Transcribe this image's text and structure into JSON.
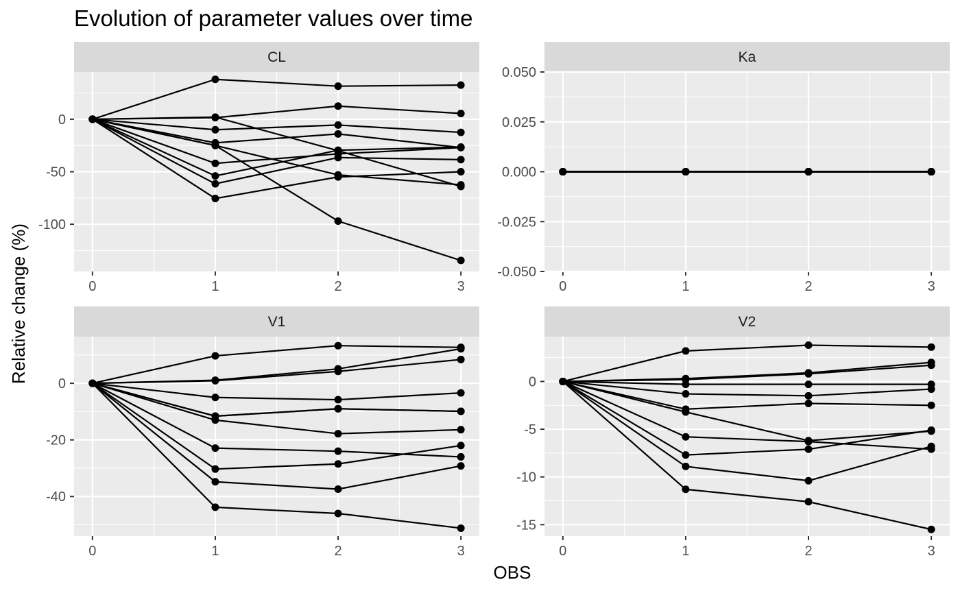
{
  "chart_data": {
    "type": "line",
    "title": "Evolution of parameter values over time",
    "xlabel": "OBS",
    "ylabel": "Relative change (%)",
    "x": [
      0,
      1,
      2,
      3
    ],
    "grid": true,
    "panels": [
      {
        "name": "CL",
        "ylim": [
          -145,
          45
        ],
        "yticks": [
          0,
          -50,
          -100
        ],
        "series": [
          [
            0,
            38,
            31.5,
            32.5
          ],
          [
            0,
            2,
            -30,
            -64
          ],
          [
            0,
            1.5,
            12.5,
            5.5
          ],
          [
            0,
            -10,
            -5.5,
            -12.5
          ],
          [
            0,
            -22.5,
            -14,
            -27
          ],
          [
            0,
            -25,
            -53,
            -62.5
          ],
          [
            0,
            -42,
            -33,
            -27
          ],
          [
            0,
            -54,
            -29.5,
            -26.5
          ],
          [
            0,
            -61.5,
            -36.5,
            -38.5
          ],
          [
            0,
            -75.5,
            -55,
            -50
          ],
          [
            0,
            -25,
            -97,
            -134.5
          ]
        ]
      },
      {
        "name": "Ka",
        "ylim": [
          -0.05,
          0.05
        ],
        "yticks": [
          0.05,
          0.025,
          0,
          -0.025,
          -0.05
        ],
        "yticklabels": [
          "0.050",
          "0.025",
          "0.000",
          "-0.025",
          "-0.050"
        ],
        "series": [
          [
            0,
            0,
            0,
            0
          ],
          [
            0,
            0,
            0,
            0
          ],
          [
            0,
            0,
            0,
            0
          ],
          [
            0,
            0,
            0,
            0
          ],
          [
            0,
            0,
            0,
            0
          ],
          [
            0,
            0,
            0,
            0
          ],
          [
            0,
            0,
            0,
            0
          ],
          [
            0,
            0,
            0,
            0
          ],
          [
            0,
            0,
            0,
            0
          ],
          [
            0,
            0,
            0,
            0
          ],
          [
            0,
            0,
            0,
            0
          ]
        ]
      },
      {
        "name": "V1",
        "ylim": [
          -54,
          16.5
        ],
        "yticks": [
          0,
          -20,
          -40
        ],
        "series": [
          [
            0,
            9.7,
            13.3,
            12.7
          ],
          [
            0,
            1.1,
            5.1,
            12.2
          ],
          [
            0,
            0.9,
            4.2,
            8.4
          ],
          [
            0,
            -5,
            -5.8,
            -3.4
          ],
          [
            0,
            -11.6,
            -9,
            -9.9
          ],
          [
            0,
            -13,
            -17.8,
            -16.4
          ],
          [
            0,
            -22.9,
            -24,
            -26
          ],
          [
            0,
            -30.3,
            -28.5,
            -22
          ],
          [
            0,
            -34.8,
            -37.4,
            -29.2
          ],
          [
            0,
            -43.8,
            -46,
            -51.2
          ],
          [
            0,
            -11.6,
            -9,
            -9.9
          ]
        ]
      },
      {
        "name": "V2",
        "ylim": [
          -16.2,
          4.7
        ],
        "yticks": [
          0,
          -5,
          -10,
          -15
        ],
        "series": [
          [
            0,
            3.2,
            3.8,
            3.6
          ],
          [
            0,
            0.3,
            0.9,
            2
          ],
          [
            0,
            0.2,
            0.8,
            1.7
          ],
          [
            0,
            -1.3,
            -1.5,
            -0.8
          ],
          [
            0,
            -2.9,
            -2.3,
            -2.5
          ],
          [
            0,
            -3.2,
            -6.2,
            -5.2
          ],
          [
            0,
            -5.8,
            -6.3,
            -7.1
          ],
          [
            0,
            -7.7,
            -7.1,
            -5.1
          ],
          [
            0,
            -8.9,
            -10.4,
            -6.8
          ],
          [
            0,
            -11.3,
            -12.6,
            -15.5
          ],
          [
            0,
            -0.3,
            -0.3,
            -0.3
          ]
        ]
      }
    ]
  }
}
